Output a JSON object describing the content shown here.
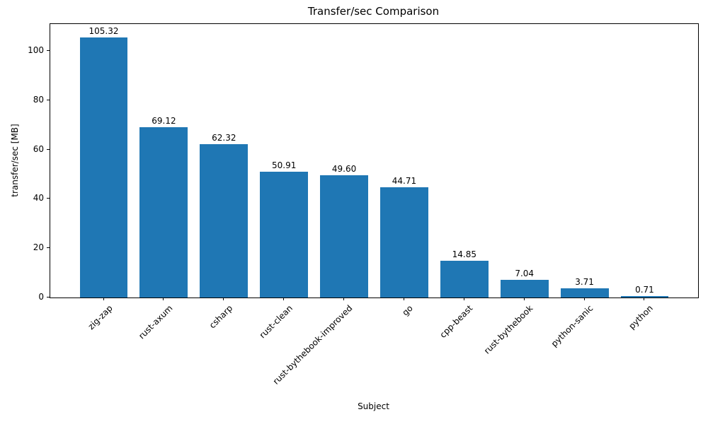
{
  "chart_data": {
    "type": "bar",
    "title": "Transfer/sec Comparison",
    "xlabel": "Subject",
    "ylabel": "transfer/sec [MB]",
    "categories": [
      "zig-zap",
      "rust-axum",
      "csharp",
      "rust-clean",
      "rust-bythebook-improved",
      "go",
      "cpp-beast",
      "rust-bythebook",
      "python-sanic",
      "python"
    ],
    "values": [
      105.32,
      69.12,
      62.32,
      50.91,
      49.6,
      44.71,
      14.85,
      7.04,
      3.71,
      0.71
    ],
    "value_labels": [
      "105.32",
      "69.12",
      "62.32",
      "50.91",
      "49.60",
      "44.71",
      "14.85",
      "7.04",
      "3.71",
      "0.71"
    ],
    "yticks": [
      0,
      20,
      40,
      60,
      80,
      100
    ],
    "ylim": [
      0,
      110.9
    ],
    "bar_color": "#1f77b4",
    "axis_color": "#000000",
    "text_color": "#000000",
    "grid": false,
    "legend": "none"
  }
}
